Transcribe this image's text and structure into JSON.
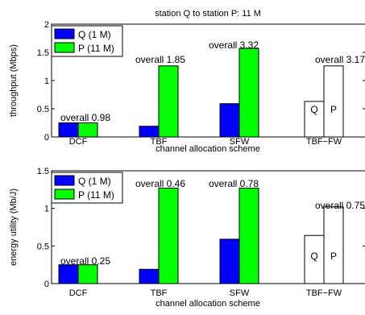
{
  "figure_title": "station Q to station P: 11 M",
  "chart_data": [
    {
      "type": "bar",
      "ylabel": "throughput (Mbps)",
      "xlabel": "channel allocation scheme",
      "ylim": [
        0,
        2
      ],
      "yticks": [
        "0",
        "0.5",
        "1",
        "1.5",
        "2"
      ],
      "ytick_values": [
        0,
        0.5,
        1,
        1.5,
        2
      ],
      "categories": [
        "DCF",
        "TBF",
        "SFW",
        "TBF−FW"
      ],
      "series": [
        {
          "name": "Q (1 M)",
          "color": "#0000ff",
          "values": [
            0.25,
            0.19,
            0.59,
            0.63
          ]
        },
        {
          "name": "P (11 M)",
          "color": "#00ff00",
          "values": [
            0.25,
            1.26,
            1.57,
            1.26
          ]
        }
      ],
      "hollow_category_index": 3,
      "bar_letters": [
        "Q",
        "P"
      ],
      "annotations": [
        "overall 0.98",
        "overall 1.85",
        "overall 3.32",
        "overall 3.17"
      ],
      "legend_position": "top-left",
      "grid": false
    },
    {
      "type": "bar",
      "ylabel": "energy utility (Mb/J)",
      "xlabel": "channel allocation scheme",
      "ylim": [
        0,
        1.5
      ],
      "yticks": [
        "0",
        "0.5",
        "1",
        "1.5"
      ],
      "ytick_values": [
        0,
        0.5,
        1,
        1.5
      ],
      "categories": [
        "DCF",
        "TBF",
        "SFW",
        "TBF−FW"
      ],
      "series": [
        {
          "name": "Q (1 M)",
          "color": "#0000ff",
          "values": [
            0.25,
            0.19,
            0.59,
            0.64
          ]
        },
        {
          "name": "P (11 M)",
          "color": "#00ff00",
          "values": [
            0.25,
            1.27,
            1.27,
            1.02
          ]
        }
      ],
      "hollow_category_index": 3,
      "bar_letters": [
        "Q",
        "P"
      ],
      "annotations": [
        "overall 0.25",
        "overall 0.46",
        "overall 0.78",
        "overall 0.75"
      ],
      "legend_position": "top-left",
      "grid": false
    }
  ]
}
